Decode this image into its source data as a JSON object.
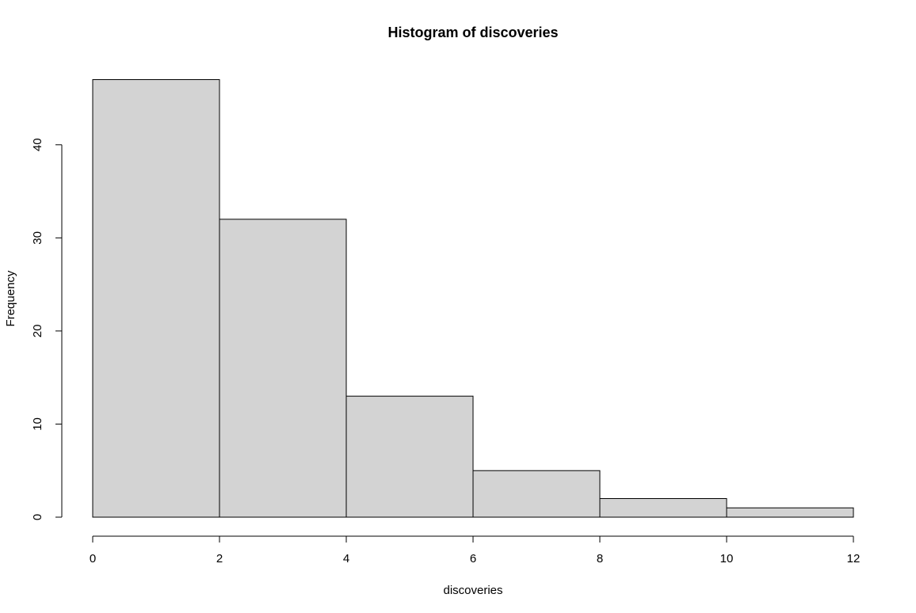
{
  "chart_data": {
    "type": "bar",
    "title": "Histogram of discoveries",
    "xlabel": "discoveries",
    "ylabel": "Frequency",
    "bins": [
      {
        "start": 0,
        "end": 2,
        "count": 47
      },
      {
        "start": 2,
        "end": 4,
        "count": 32
      },
      {
        "start": 4,
        "end": 6,
        "count": 13
      },
      {
        "start": 6,
        "end": 8,
        "count": 5
      },
      {
        "start": 8,
        "end": 10,
        "count": 2
      },
      {
        "start": 10,
        "end": 12,
        "count": 1
      }
    ],
    "xlim": [
      0,
      12
    ],
    "ylim": [
      0,
      47
    ],
    "xticks": [
      0,
      2,
      4,
      6,
      8,
      10,
      12
    ],
    "yticks": [
      0,
      10,
      20,
      30,
      40
    ],
    "grid": false,
    "legend": "none",
    "colors": {
      "bar_fill": "#d3d3d3",
      "bar_stroke": "#000000"
    }
  }
}
